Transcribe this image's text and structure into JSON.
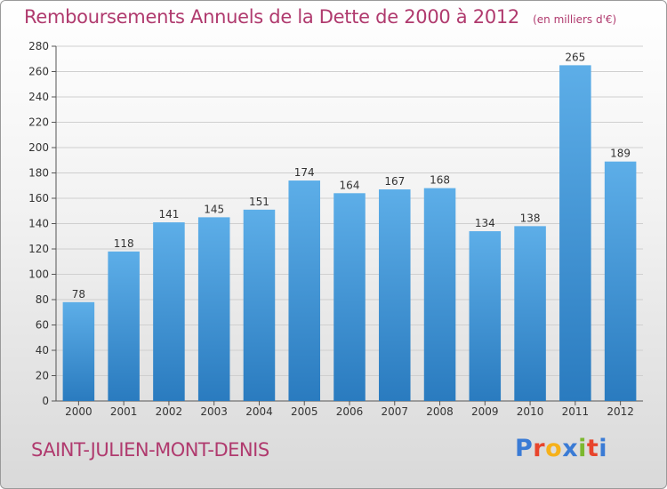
{
  "colors": {
    "bar_top": "#5daee8",
    "bar_bottom": "#2a7bbf",
    "title": "#b03a6e",
    "grid": "#cfcfcf"
  },
  "header": {
    "title": "Remboursements Annuels de la Dette de 2000 à 2012",
    "subtitle": "(en milliers d'€)"
  },
  "footer": {
    "commune": "SAINT-JULIEN-MONT-DENIS",
    "logo_letters": [
      "P",
      "r",
      "o",
      "x",
      "i",
      "t",
      "i"
    ],
    "logo_colors": [
      "#3a7bd5",
      "#e8452c",
      "#f6b11a",
      "#3a7bd5",
      "#7cb82f",
      "#e8452c",
      "#3a7bd5"
    ]
  },
  "chart_data": {
    "type": "bar",
    "title": "Remboursements Annuels de la Dette de 2000 à 2012",
    "subtitle": "(en milliers d'€)",
    "categories": [
      "2000",
      "2001",
      "2002",
      "2003",
      "2004",
      "2005",
      "2006",
      "2007",
      "2008",
      "2009",
      "2010",
      "2011",
      "2012"
    ],
    "values": [
      78,
      118,
      141,
      145,
      151,
      174,
      164,
      167,
      168,
      134,
      138,
      265,
      189
    ],
    "ylim": [
      0,
      280
    ],
    "yticks": [
      0,
      20,
      40,
      60,
      80,
      100,
      120,
      140,
      160,
      180,
      200,
      220,
      240,
      260,
      280
    ],
    "grid": true,
    "xlabel": "",
    "ylabel": ""
  }
}
